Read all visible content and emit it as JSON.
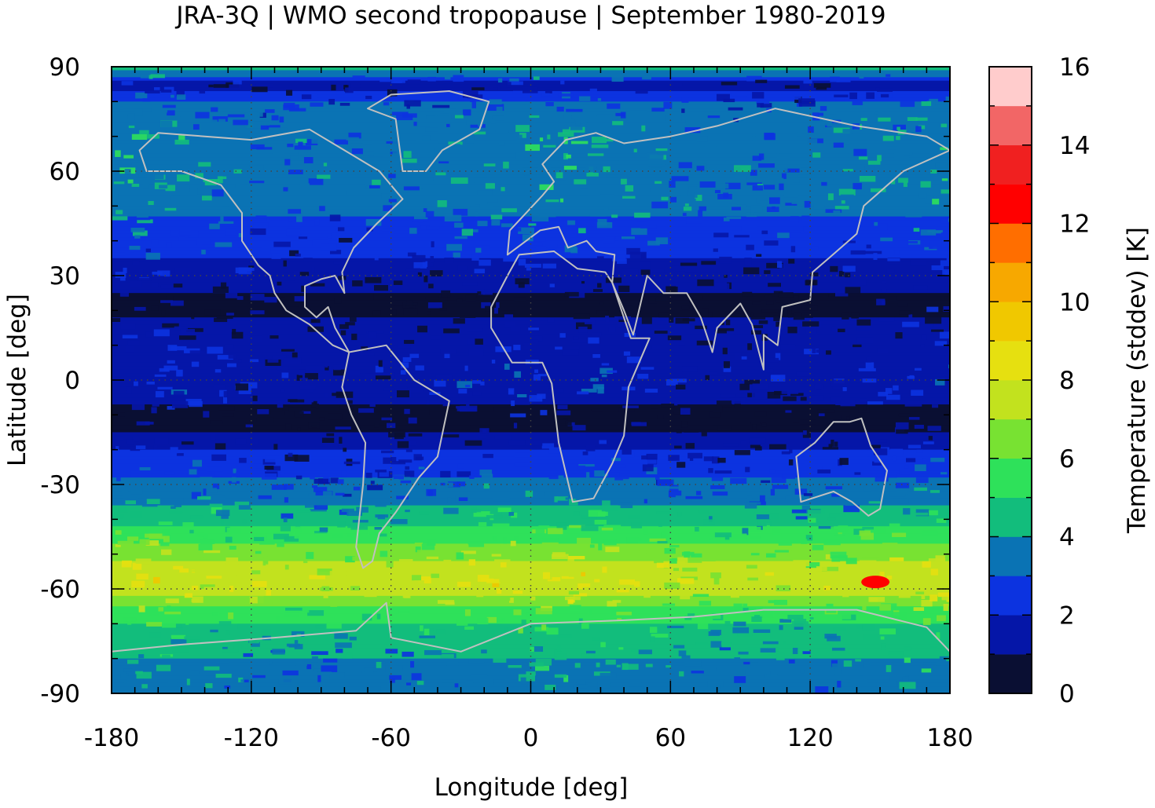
{
  "chart_data": {
    "type": "heatmap",
    "title": "JRA-3Q | WMO second tropopause | September 1980-2019",
    "xlabel": "Longitude [deg]",
    "ylabel": "Latitude [deg]",
    "xlim": [
      -180,
      180
    ],
    "ylim": [
      -90,
      90
    ],
    "x_ticks": [
      "-180",
      "-120",
      "-60",
      "0",
      "60",
      "120",
      "180"
    ],
    "y_ticks": [
      "90",
      "60",
      "30",
      "0",
      "-30",
      "-60",
      "-90"
    ],
    "x_tick_values": [
      -180,
      -120,
      -60,
      0,
      60,
      120,
      180
    ],
    "y_tick_values": [
      90,
      60,
      30,
      0,
      -30,
      -60,
      -90
    ],
    "grid": "dotted",
    "colorbar": {
      "label": "Temperature (stddev) [K]",
      "range": [
        0,
        16
      ],
      "tick_labels": [
        "0",
        "2",
        "4",
        "6",
        "8",
        "10",
        "12",
        "14",
        "16"
      ],
      "tick_values": [
        0,
        2,
        4,
        6,
        8,
        10,
        12,
        14,
        16
      ],
      "levels": [
        0,
        1,
        2,
        3,
        4,
        5,
        6,
        7,
        8,
        9,
        10,
        11,
        12,
        13,
        14,
        15,
        16
      ],
      "colors": [
        "#0a0f33",
        "#0516a8",
        "#0c33e0",
        "#0a73b4",
        "#12bd7c",
        "#2ee15a",
        "#78e232",
        "#c2e21e",
        "#e6e010",
        "#f0c800",
        "#f7a800",
        "#ff6e00",
        "#ff0000",
        "#f02020",
        "#f26666",
        "#ffcccc"
      ]
    },
    "zonal_mean_profile": {
      "lat": [
        90,
        85,
        80,
        75,
        70,
        65,
        60,
        55,
        50,
        45,
        40,
        35,
        30,
        25,
        20,
        15,
        10,
        5,
        0,
        -5,
        -10,
        -15,
        -20,
        -25,
        -30,
        -35,
        -40,
        -45,
        -50,
        -55,
        -60,
        -65,
        -70,
        -75,
        -80,
        -85,
        -90
      ],
      "value": [
        5.0,
        1.0,
        3.0,
        3.5,
        4.0,
        3.8,
        3.6,
        3.5,
        3.2,
        2.8,
        2.4,
        2.0,
        1.4,
        1.0,
        0.8,
        1.2,
        1.6,
        1.8,
        1.8,
        1.2,
        0.7,
        1.0,
        2.0,
        2.6,
        3.2,
        3.8,
        4.5,
        5.5,
        6.5,
        7.5,
        7.5,
        6.0,
        5.0,
        4.5,
        4.0,
        3.6,
        3.5
      ]
    },
    "hotspot": {
      "lon": 148,
      "lat": -58,
      "value": 12.5
    }
  }
}
